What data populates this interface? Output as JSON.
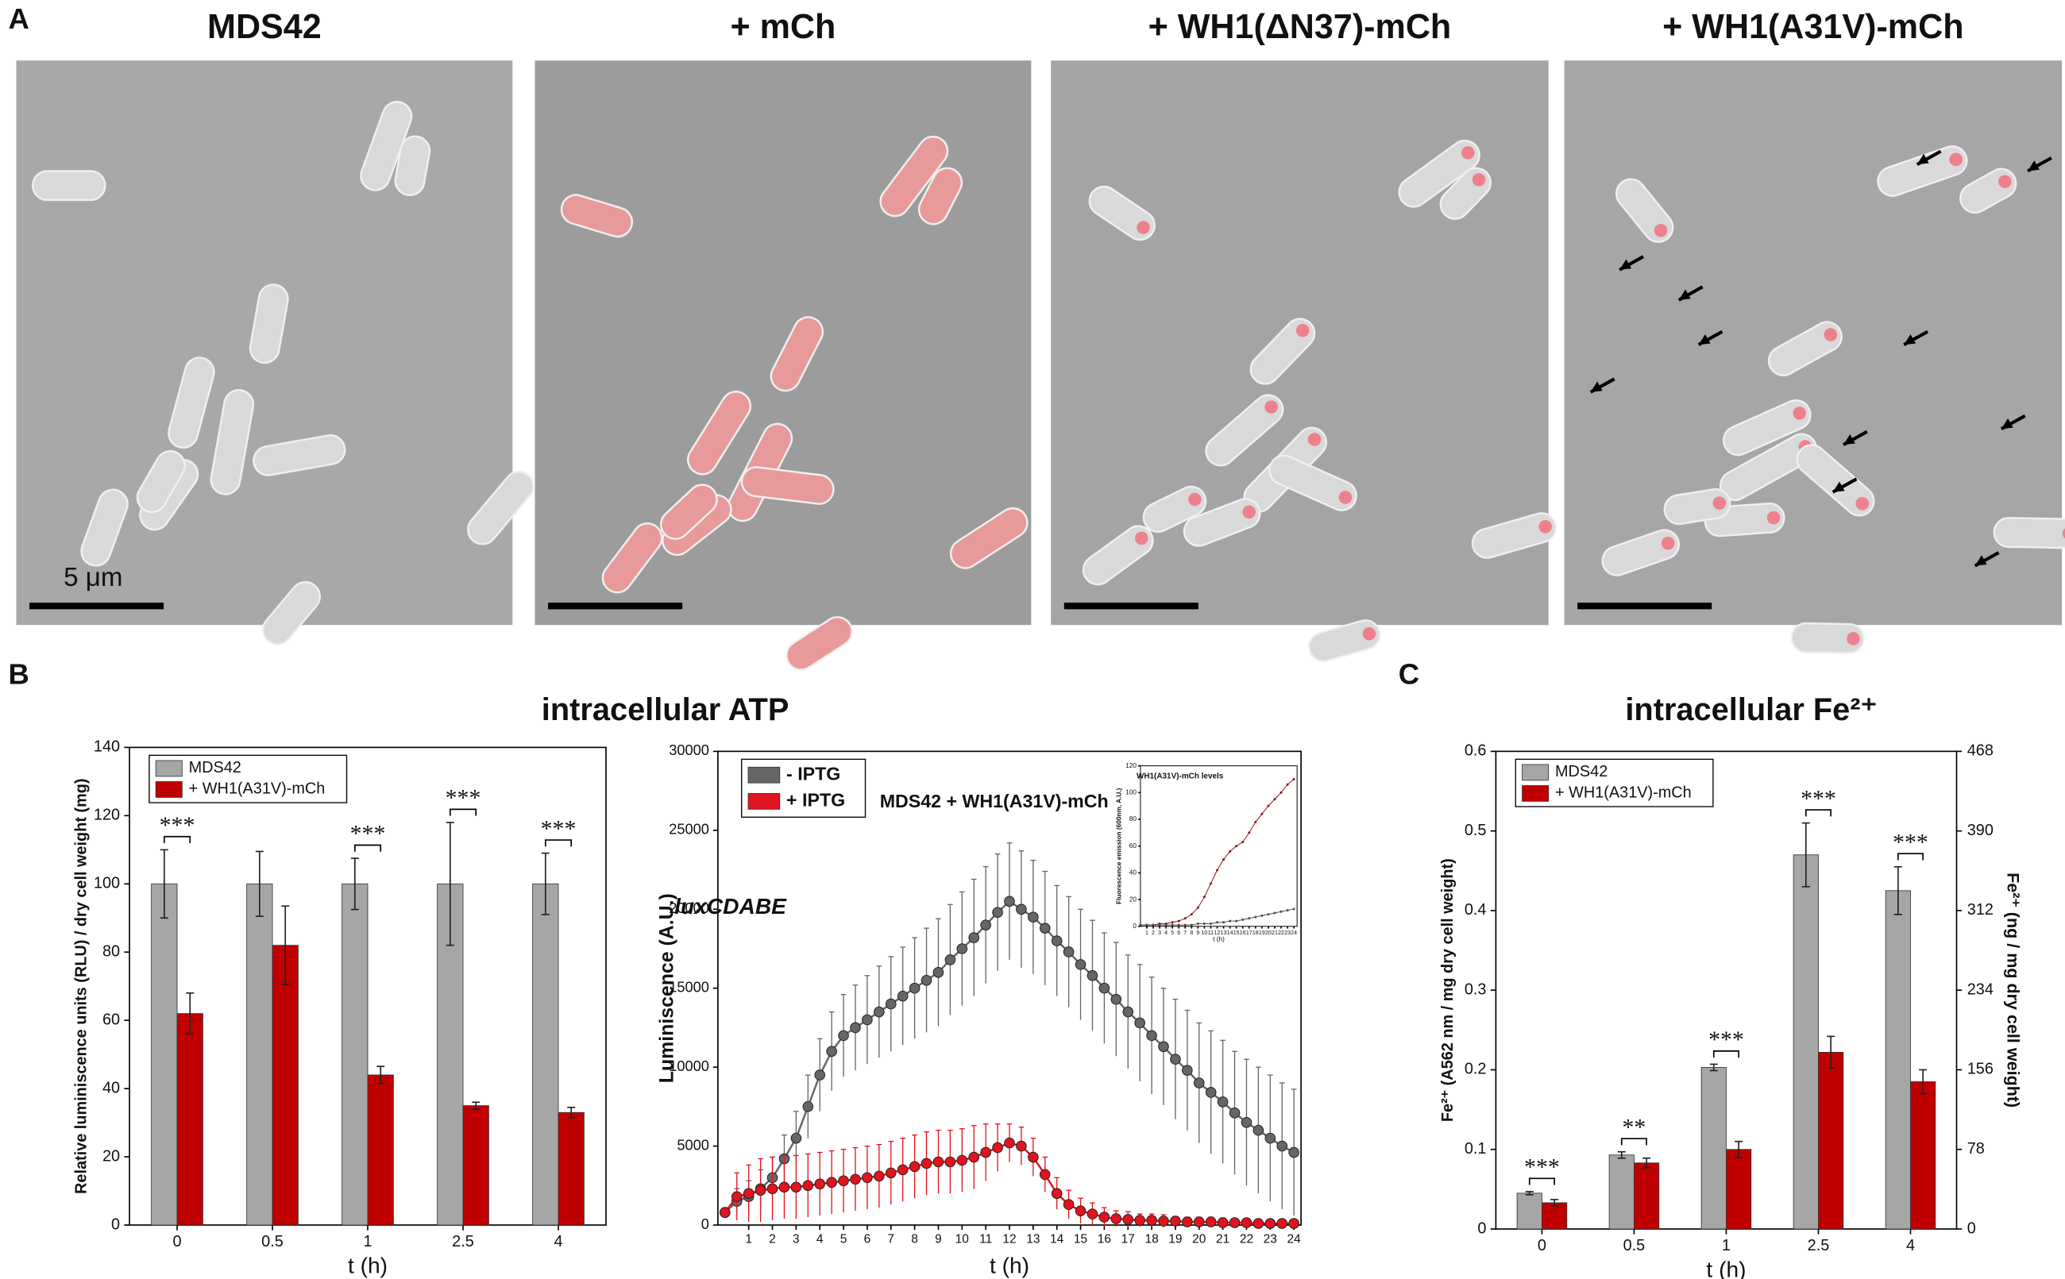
{
  "figure": {
    "panel_a": {
      "label": "A",
      "images": [
        {
          "title": "MDS42"
        },
        {
          "title": "+ mCh"
        },
        {
          "title": "+ WH1(ΔN37)-mCh"
        },
        {
          "title": "+ WH1(A31V)-mCh"
        }
      ],
      "scale_bar": "5 μm"
    },
    "panel_b": {
      "label": "B",
      "title": "intracellular ATP"
    },
    "panel_c": {
      "label": "C"
    }
  },
  "chart_data": [
    {
      "type": "bar",
      "categories": [
        "0",
        "0.5",
        "1",
        "2.5",
        "4"
      ],
      "series": [
        {
          "name": "MDS42",
          "color": "#a6a6a6",
          "values": [
            100,
            100,
            100,
            100,
            100
          ],
          "errors": [
            10,
            9.5,
            7.5,
            18,
            9
          ]
        },
        {
          "name": "+ WH1(A31V)-mCh",
          "color": "#c00000",
          "values": [
            62,
            82,
            44,
            35,
            33
          ],
          "errors": [
            6,
            11.5,
            2.5,
            1,
            1.5
          ]
        }
      ],
      "significance": [
        "***",
        null,
        "***",
        "***",
        "***"
      ],
      "ylim": [
        0,
        140
      ],
      "yticks": [
        0,
        20,
        40,
        60,
        80,
        100,
        120,
        140
      ],
      "ylabel": "Relative luminiscence units (RLU) / dry cell weight (mg)",
      "xlabel": "t (h)",
      "legend": "top-left"
    },
    {
      "type": "line",
      "x": [
        0,
        0.5,
        1,
        1.5,
        2,
        2.5,
        3,
        3.5,
        4,
        4.5,
        5,
        5.5,
        6,
        6.5,
        7,
        7.5,
        8,
        8.5,
        9,
        9.5,
        10,
        10.5,
        11,
        11.5,
        12,
        12.5,
        13,
        13.5,
        14,
        14.5,
        15,
        15.5,
        16,
        16.5,
        17,
        17.5,
        18,
        18.5,
        19,
        19.5,
        20,
        20.5,
        21,
        21.5,
        22,
        22.5,
        23,
        23.5,
        24
      ],
      "series": [
        {
          "name": "- IPTG",
          "color": "#666666",
          "values": [
            800,
            1500,
            1800,
            2300,
            3000,
            4200,
            5500,
            7500,
            9500,
            11000,
            12000,
            12500,
            13000,
            13500,
            14000,
            14500,
            15000,
            15500,
            16000,
            16800,
            17500,
            18200,
            19000,
            19800,
            20500,
            20000,
            19500,
            18800,
            18000,
            17300,
            16500,
            15800,
            15000,
            14300,
            13500,
            12800,
            12000,
            11300,
            10500,
            9800,
            9000,
            8400,
            7800,
            7100,
            6500,
            6000,
            5500,
            5000,
            4600
          ],
          "errors": [
            300,
            800,
            1000,
            1200,
            1300,
            1500,
            1700,
            2000,
            2300,
            2500,
            2600,
            2700,
            2800,
            2900,
            3000,
            3100,
            3200,
            3300,
            3400,
            3500,
            3600,
            3700,
            3700,
            3700,
            3700,
            3700,
            3600,
            3600,
            3500,
            3500,
            3500,
            3500,
            3500,
            3600,
            3600,
            3700,
            3700,
            3700,
            3800,
            3800,
            3800,
            3900,
            3900,
            3900,
            4000,
            4000,
            4000,
            4000,
            4000
          ]
        },
        {
          "name": "+ IPTG",
          "color": "#e0141e",
          "values": [
            800,
            1800,
            2000,
            2200,
            2300,
            2400,
            2400,
            2500,
            2600,
            2700,
            2800,
            2900,
            3000,
            3100,
            3300,
            3500,
            3700,
            3900,
            4000,
            4000,
            4100,
            4300,
            4600,
            4900,
            5200,
            5000,
            4300,
            3200,
            2000,
            1300,
            900,
            700,
            500,
            400,
            350,
            300,
            300,
            250,
            250,
            200,
            200,
            200,
            150,
            150,
            150,
            100,
            100,
            100,
            100
          ],
          "errors": [
            200,
            1500,
            1800,
            2000,
            2000,
            2000,
            2000,
            2000,
            2000,
            2000,
            2000,
            2000,
            2000,
            2000,
            2000,
            2000,
            2000,
            2000,
            2000,
            2000,
            2000,
            2000,
            1800,
            1500,
            1200,
            1200,
            1200,
            1100,
            1000,
            900,
            800,
            700,
            600,
            500,
            500,
            400,
            400,
            400,
            300,
            300,
            300,
            300,
            300,
            250,
            250,
            250,
            200,
            200,
            200
          ]
        }
      ],
      "xlim": [
        -0.3,
        24.3
      ],
      "xticks": [
        1,
        2,
        3,
        4,
        5,
        6,
        7,
        8,
        9,
        10,
        11,
        12,
        13,
        14,
        15,
        16,
        17,
        18,
        19,
        20,
        21,
        22,
        23,
        24
      ],
      "ylim": [
        0,
        30000
      ],
      "yticks": [
        0,
        5000,
        10000,
        15000,
        20000,
        25000,
        30000
      ],
      "ylabel": "Luminiscence (A.U.)",
      "xlabel": "t (h)",
      "legend": "top-left",
      "annotations": [
        "MDS42 + WH1(A31V)-mCh",
        "luxCDABE"
      ]
    },
    {
      "type": "line",
      "title": "WH1(A31V)-mCh levels",
      "x": [
        0,
        1,
        2,
        3,
        4,
        5,
        6,
        7,
        8,
        9,
        10,
        11,
        12,
        13,
        14,
        15,
        16,
        17,
        18,
        19,
        20,
        21,
        22,
        23,
        24
      ],
      "series": [
        {
          "color": "#a01010",
          "values": [
            1,
            1,
            1,
            2,
            2,
            3,
            4,
            6,
            9,
            14,
            22,
            32,
            42,
            50,
            56,
            60,
            63,
            70,
            78,
            84,
            90,
            95,
            100,
            106,
            110
          ]
        },
        {
          "color": "#555555",
          "values": [
            1,
            1,
            1,
            1,
            1,
            1,
            1,
            1,
            1,
            2,
            2,
            2,
            3,
            3,
            4,
            4,
            5,
            6,
            7,
            8,
            9,
            10,
            11,
            12,
            13
          ]
        }
      ],
      "xlim": [
        0,
        24.5
      ],
      "xticks": [
        1,
        2,
        3,
        4,
        5,
        6,
        7,
        8,
        9,
        10,
        11,
        12,
        13,
        14,
        15,
        16,
        17,
        18,
        19,
        20,
        21,
        22,
        23,
        24
      ],
      "ylim": [
        0,
        120
      ],
      "yticks": [
        0,
        20,
        40,
        60,
        80,
        100,
        120
      ],
      "ylabel": "Fluorescence emission (600nm, A.U.)",
      "xlabel": "t (h)"
    },
    {
      "type": "bar",
      "title": "intracellular Fe²⁺",
      "categories": [
        "0",
        "0.5",
        "1",
        "2.5",
        "4"
      ],
      "series": [
        {
          "name": "MDS42",
          "color": "#a6a6a6",
          "values": [
            0.045,
            0.093,
            0.203,
            0.47,
            0.425
          ],
          "errors": [
            0.002,
            0.004,
            0.004,
            0.04,
            0.03
          ]
        },
        {
          "name": "+ WH1(A31V)-mCh",
          "color": "#c00000",
          "values": [
            0.033,
            0.083,
            0.1,
            0.222,
            0.185
          ],
          "errors": [
            0.004,
            0.006,
            0.01,
            0.02,
            0.015
          ]
        }
      ],
      "significance": [
        "***",
        "**",
        "***",
        "***",
        "***"
      ],
      "ylim": [
        0,
        0.6
      ],
      "yticks": [
        0,
        0.1,
        0.2,
        0.3,
        0.4,
        0.5,
        0.6
      ],
      "y2lim": [
        0,
        468
      ],
      "y2ticks": [
        0,
        78,
        156,
        234,
        312,
        390,
        468
      ],
      "ylabel": "Fe²⁺ (A562 nm / mg dry cell weight)",
      "y2label": "Fe²⁺ (ng / mg dry cell weight)",
      "xlabel": "t (h)",
      "legend": "top-left"
    }
  ]
}
